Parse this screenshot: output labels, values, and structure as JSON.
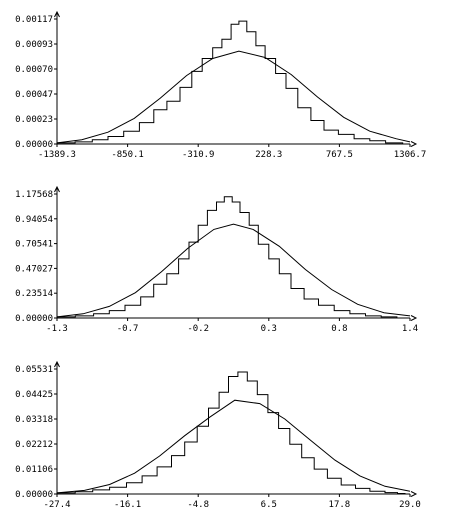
{
  "chart_data": [
    {
      "type": "line",
      "title": "",
      "xlabel": "",
      "ylabel": "",
      "x_ticks": [
        "-1389.3",
        "-850.1",
        "-310.9",
        "228.3",
        "767.5",
        "1306.7"
      ],
      "y_ticks": [
        "0.00000",
        "0.00023",
        "0.00047",
        "0.00070",
        "0.00093",
        "0.00117"
      ],
      "xlim": [
        -1389.3,
        1306.7
      ],
      "ylim": [
        0,
        0.00117
      ],
      "grid": false,
      "series": [
        {
          "kind": "histogram",
          "x": [
            -1389.3,
            -1251.0,
            -1120.0,
            -1000.0,
            -880.0,
            -760.0,
            -650.0,
            -550.0,
            -450.0,
            -360.0,
            -280.0,
            -200.0,
            -130.0,
            -60.0,
            0.0,
            60.0,
            130.0,
            200.0,
            280.0,
            360.0,
            450.0,
            550.0,
            650.0,
            760.0,
            880.0,
            1000.0,
            1120.0,
            1251.0,
            1306.7
          ],
          "y": [
            1e-05,
            2e-05,
            4e-05,
            7e-05,
            0.00012,
            0.0002,
            0.00032,
            0.0004,
            0.00053,
            0.00068,
            0.0008,
            0.0009,
            0.00098,
            0.00112,
            0.00115,
            0.00105,
            0.00092,
            0.0008,
            0.00066,
            0.00052,
            0.00034,
            0.00022,
            0.00013,
            9e-05,
            5e-05,
            3e-05,
            1e-05,
            0.0,
            0.0
          ]
        },
        {
          "kind": "curve",
          "x": [
            -1389.3,
            -1200.0,
            -1000.0,
            -800.0,
            -600.0,
            -400.0,
            -200.0,
            0.0,
            200.0,
            400.0,
            600.0,
            800.0,
            1000.0,
            1200.0,
            1306.7
          ],
          "y": [
            1e-05,
            4e-05,
            0.00011,
            0.00024,
            0.00043,
            0.00064,
            0.0008,
            0.00087,
            0.00081,
            0.00065,
            0.00044,
            0.00025,
            0.00012,
            5e-05,
            2e-05
          ]
        }
      ]
    },
    {
      "type": "line",
      "title": "",
      "xlabel": "",
      "ylabel": "",
      "x_ticks": [
        "-1.3",
        "-0.7",
        "-0.2",
        "0.3",
        "0.8",
        "1.4"
      ],
      "y_ticks": [
        "0.00000",
        "0.23514",
        "0.47027",
        "0.70541",
        "0.94054",
        "1.17568"
      ],
      "xlim": [
        -1.3,
        1.4
      ],
      "ylim": [
        0,
        1.17568
      ],
      "grid": false,
      "series": [
        {
          "kind": "histogram",
          "x": [
            -1.3,
            -1.16,
            -1.02,
            -0.9,
            -0.78,
            -0.66,
            -0.56,
            -0.46,
            -0.37,
            -0.29,
            -0.22,
            -0.15,
            -0.08,
            -0.02,
            0.04,
            0.1,
            0.17,
            0.24,
            0.32,
            0.4,
            0.49,
            0.59,
            0.7,
            0.82,
            0.94,
            1.06,
            1.18,
            1.3,
            1.4
          ],
          "y": [
            0.01,
            0.02,
            0.04,
            0.07,
            0.12,
            0.2,
            0.32,
            0.42,
            0.56,
            0.72,
            0.88,
            1.02,
            1.1,
            1.15,
            1.1,
            1.0,
            0.88,
            0.7,
            0.56,
            0.42,
            0.28,
            0.18,
            0.12,
            0.07,
            0.04,
            0.02,
            0.01,
            0.0,
            0.0
          ]
        },
        {
          "kind": "curve",
          "x": [
            -1.3,
            -1.1,
            -0.9,
            -0.7,
            -0.5,
            -0.3,
            -0.1,
            0.05,
            0.2,
            0.4,
            0.6,
            0.8,
            1.0,
            1.2,
            1.4
          ],
          "y": [
            0.01,
            0.04,
            0.11,
            0.24,
            0.44,
            0.66,
            0.84,
            0.89,
            0.84,
            0.68,
            0.46,
            0.27,
            0.13,
            0.05,
            0.02
          ]
        }
      ]
    },
    {
      "type": "line",
      "title": "",
      "xlabel": "",
      "ylabel": "",
      "x_ticks": [
        "-27.4",
        "-16.1",
        "-4.8",
        "6.5",
        "17.8",
        "29.0"
      ],
      "y_ticks": [
        "0.00000",
        "0.01106",
        "0.02212",
        "0.03318",
        "0.04425",
        "0.05531"
      ],
      "xlim": [
        -27.4,
        29.0
      ],
      "ylim": [
        0,
        0.05531
      ],
      "grid": false,
      "series": [
        {
          "kind": "histogram",
          "x": [
            -27.4,
            -24.5,
            -21.7,
            -19.0,
            -16.3,
            -13.8,
            -11.4,
            -9.1,
            -7.0,
            -5.0,
            -3.2,
            -1.5,
            0.0,
            1.5,
            3.0,
            4.6,
            6.3,
            8.0,
            9.8,
            11.7,
            13.7,
            15.8,
            18.0,
            20.3,
            22.6,
            25.0,
            27.0,
            28.2,
            29.0
          ],
          "y": [
            0.0005,
            0.001,
            0.0018,
            0.003,
            0.005,
            0.008,
            0.012,
            0.017,
            0.023,
            0.03,
            0.038,
            0.045,
            0.052,
            0.054,
            0.05,
            0.044,
            0.036,
            0.029,
            0.022,
            0.016,
            0.011,
            0.007,
            0.004,
            0.0025,
            0.0012,
            0.0006,
            0.0002,
            0.0,
            0.0
          ]
        },
        {
          "kind": "curve",
          "x": [
            -27.4,
            -23.0,
            -19.0,
            -15.0,
            -11.0,
            -7.0,
            -3.0,
            1.0,
            5.0,
            9.0,
            13.0,
            17.0,
            21.0,
            25.0,
            29.0
          ],
          "y": [
            0.0005,
            0.0016,
            0.0042,
            0.0092,
            0.0168,
            0.0258,
            0.034,
            0.0415,
            0.04,
            0.0332,
            0.024,
            0.015,
            0.008,
            0.0034,
            0.0012
          ]
        }
      ]
    }
  ]
}
